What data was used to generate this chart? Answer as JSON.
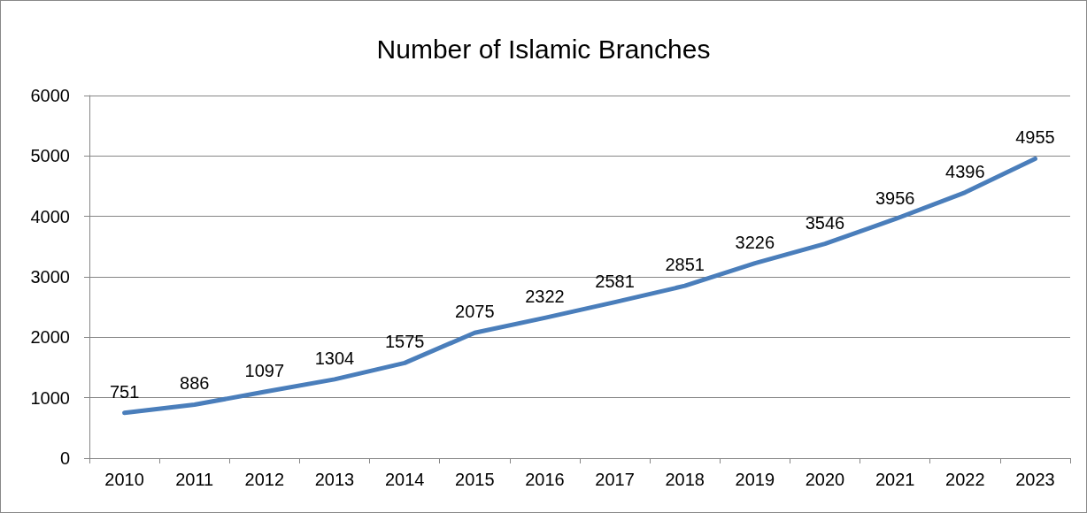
{
  "chart_data": {
    "type": "line",
    "title": "Number of Islamic Branches",
    "categories": [
      "2010",
      "2011",
      "2012",
      "2013",
      "2014",
      "2015",
      "2016",
      "2017",
      "2018",
      "2019",
      "2020",
      "2021",
      "2022",
      "2023"
    ],
    "series": [
      {
        "color": "#4a7ebb",
        "values": [
          751,
          886,
          1097,
          1304,
          1575,
          2075,
          2322,
          2581,
          2851,
          3226,
          3546,
          3956,
          4396,
          4955
        ]
      }
    ],
    "ylim": [
      0,
      6000
    ],
    "yticks": [
      0,
      1000,
      2000,
      3000,
      4000,
      5000,
      6000
    ],
    "grid": "y",
    "marker": "none",
    "line_style": "solid",
    "data_labels": true
  }
}
